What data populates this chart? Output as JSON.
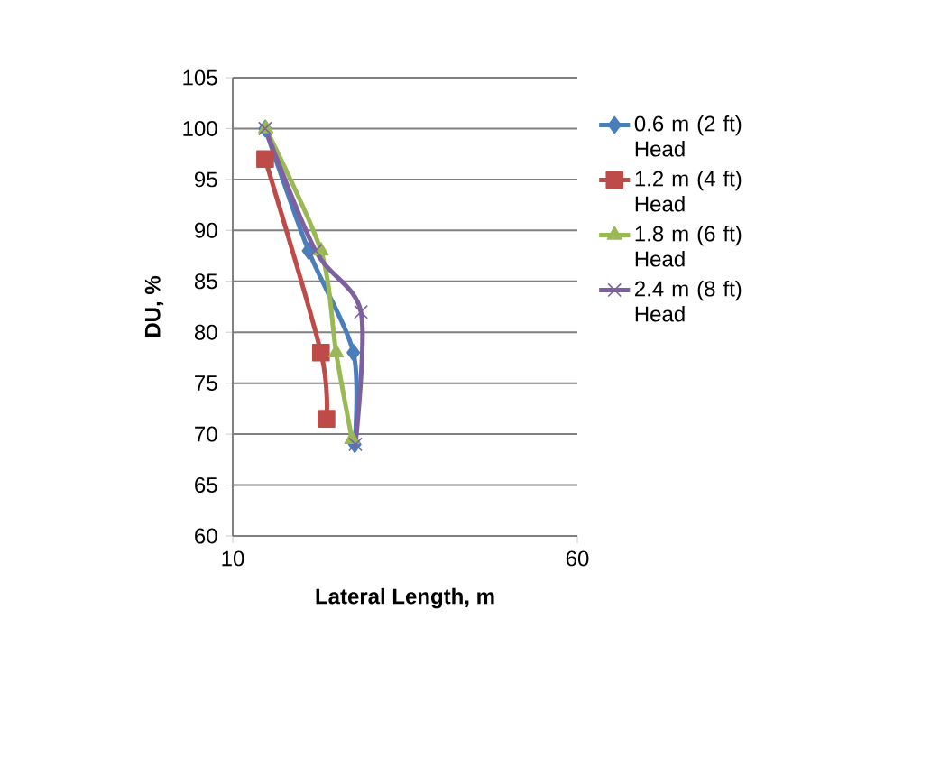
{
  "chart_data": {
    "type": "line",
    "xlabel": "Lateral Length, m",
    "ylabel": "DU, %",
    "xlim": [
      10,
      60
    ],
    "xticks": [
      10,
      60
    ],
    "ylim": [
      60,
      105
    ],
    "yticks": [
      60,
      65,
      70,
      75,
      80,
      85,
      90,
      95,
      100,
      105
    ],
    "grid": "y",
    "legend": "right",
    "series": [
      {
        "name": "0.6 m (2 ft) Head",
        "color": "#4a7ebb",
        "marker": "diamond",
        "x": [
          14.7,
          21,
          27.5,
          27.7
        ],
        "values": [
          100,
          88,
          78,
          69
        ]
      },
      {
        "name": "1.2 m (4 ft) Head",
        "color": "#be4b48",
        "marker": "square",
        "x": [
          14.7,
          22.8,
          23.6
        ],
        "values": [
          97,
          78,
          71.5
        ]
      },
      {
        "name": "1.8 m (6 ft) Head",
        "color": "#98b954",
        "marker": "triangle",
        "x": [
          14.8,
          22.8,
          25,
          27.3
        ],
        "values": [
          100,
          88,
          78,
          69.5
        ]
      },
      {
        "name": "2.4 m (8 ft) Head",
        "color": "#7d60a0",
        "marker": "cross",
        "x": [
          14.7,
          22,
          28.6,
          27.8
        ],
        "values": [
          100,
          88,
          82,
          69
        ]
      }
    ]
  }
}
